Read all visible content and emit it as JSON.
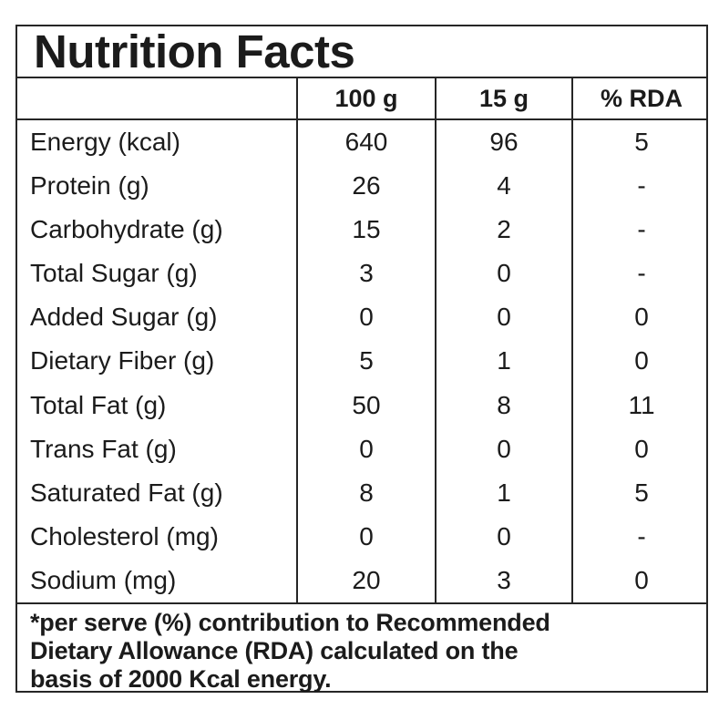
{
  "title": "Nutrition Facts",
  "columns": {
    "label": "",
    "per_100g": "100 g",
    "per_serving": "15 g",
    "rda": "% RDA"
  },
  "rows": [
    {
      "label": "Energy (kcal)",
      "per_100g": "640",
      "per_serving": "96",
      "rda": "5"
    },
    {
      "label": "Protein (g)",
      "per_100g": "26",
      "per_serving": "4",
      "rda": "-"
    },
    {
      "label": "Carbohydrate (g)",
      "per_100g": "15",
      "per_serving": "2",
      "rda": "-"
    },
    {
      "label": "Total Sugar (g)",
      "per_100g": "3",
      "per_serving": "0",
      "rda": "-"
    },
    {
      "label": "Added Sugar (g)",
      "per_100g": "0",
      "per_serving": "0",
      "rda": "0"
    },
    {
      "label": "Dietary Fiber (g)",
      "per_100g": "5",
      "per_serving": "1",
      "rda": "0"
    },
    {
      "label": "Total Fat (g)",
      "per_100g": "50",
      "per_serving": "8",
      "rda": "11"
    },
    {
      "label": "Trans Fat (g)",
      "per_100g": "0",
      "per_serving": "0",
      "rda": "0"
    },
    {
      "label": "Saturated Fat (g)",
      "per_100g": "8",
      "per_serving": "1",
      "rda": "5"
    },
    {
      "label": "Cholesterol (mg)",
      "per_100g": "0",
      "per_serving": "0",
      "rda": "-"
    },
    {
      "label": "Sodium (mg)",
      "per_100g": "20",
      "per_serving": "3",
      "rda": "0"
    }
  ],
  "footnote": {
    "lines": [
      "*per serve (%) contribution to Recommended",
      "Dietary Allowance (RDA) calculated on the",
      "basis of 2000 Kcal energy."
    ]
  },
  "colors": {
    "text": "#1b1b1b",
    "border": "#262626",
    "background": "#ffffff"
  }
}
